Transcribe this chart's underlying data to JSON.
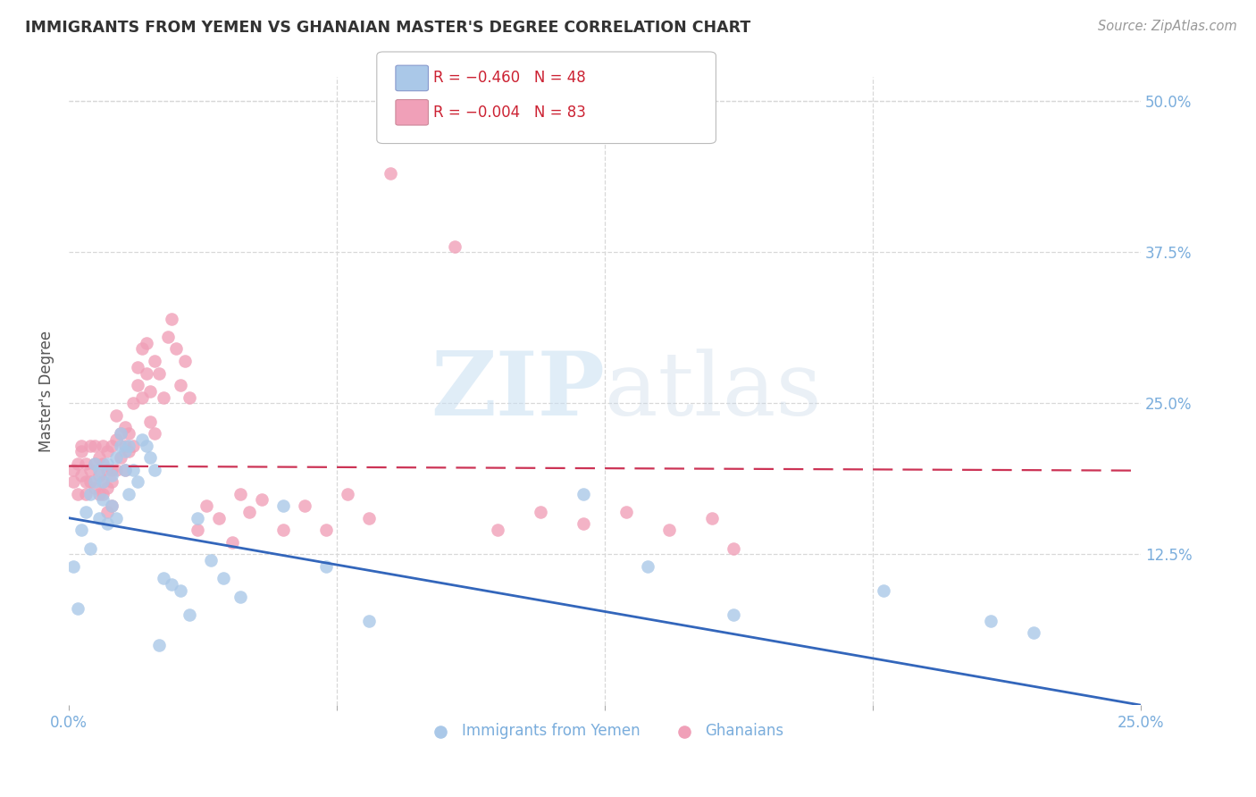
{
  "title": "IMMIGRANTS FROM YEMEN VS GHANAIAN MASTER'S DEGREE CORRELATION CHART",
  "source": "Source: ZipAtlas.com",
  "ylabel": "Master's Degree",
  "ytick_labels": [
    "50.0%",
    "37.5%",
    "25.0%",
    "12.5%"
  ],
  "ytick_values": [
    0.5,
    0.375,
    0.25,
    0.125
  ],
  "xlim": [
    0.0,
    0.25
  ],
  "ylim": [
    0.0,
    0.52
  ],
  "legend_series": [
    "Immigrants from Yemen",
    "Ghanaians"
  ],
  "background_color": "#ffffff",
  "grid_color": "#d8d8d8",
  "right_tick_color": "#7aaddc",
  "yemen_scatter_color": "#aac8e8",
  "ghana_scatter_color": "#f0a0b8",
  "yemen_line_color": "#3366bb",
  "ghana_line_color": "#cc3355",
  "yemen_slope": -0.62,
  "yemen_intercept": 0.155,
  "ghana_slope": -0.015,
  "ghana_intercept": 0.198,
  "yemen_points_x": [
    0.001,
    0.002,
    0.003,
    0.004,
    0.005,
    0.005,
    0.006,
    0.006,
    0.007,
    0.007,
    0.008,
    0.008,
    0.009,
    0.009,
    0.01,
    0.01,
    0.011,
    0.011,
    0.012,
    0.012,
    0.013,
    0.013,
    0.014,
    0.014,
    0.015,
    0.016,
    0.017,
    0.018,
    0.019,
    0.02,
    0.021,
    0.022,
    0.024,
    0.026,
    0.028,
    0.03,
    0.033,
    0.036,
    0.04,
    0.05,
    0.06,
    0.07,
    0.12,
    0.135,
    0.155,
    0.19,
    0.215,
    0.225
  ],
  "yemen_points_y": [
    0.115,
    0.08,
    0.145,
    0.16,
    0.13,
    0.175,
    0.185,
    0.2,
    0.155,
    0.195,
    0.17,
    0.185,
    0.15,
    0.2,
    0.165,
    0.19,
    0.155,
    0.205,
    0.215,
    0.225,
    0.195,
    0.21,
    0.175,
    0.215,
    0.195,
    0.185,
    0.22,
    0.215,
    0.205,
    0.195,
    0.05,
    0.105,
    0.1,
    0.095,
    0.075,
    0.155,
    0.12,
    0.105,
    0.09,
    0.165,
    0.115,
    0.07,
    0.175,
    0.115,
    0.075,
    0.095,
    0.07,
    0.06
  ],
  "ghana_points_x": [
    0.001,
    0.001,
    0.002,
    0.002,
    0.003,
    0.003,
    0.003,
    0.004,
    0.004,
    0.004,
    0.005,
    0.005,
    0.005,
    0.006,
    0.006,
    0.006,
    0.007,
    0.007,
    0.007,
    0.008,
    0.008,
    0.008,
    0.009,
    0.009,
    0.009,
    0.01,
    0.01,
    0.01,
    0.011,
    0.011,
    0.011,
    0.012,
    0.012,
    0.013,
    0.013,
    0.013,
    0.014,
    0.014,
    0.015,
    0.015,
    0.016,
    0.016,
    0.017,
    0.017,
    0.018,
    0.018,
    0.019,
    0.019,
    0.02,
    0.02,
    0.021,
    0.022,
    0.023,
    0.024,
    0.025,
    0.026,
    0.027,
    0.028,
    0.03,
    0.032,
    0.035,
    0.038,
    0.04,
    0.042,
    0.045,
    0.05,
    0.055,
    0.06,
    0.065,
    0.07,
    0.075,
    0.08,
    0.09,
    0.1,
    0.11,
    0.12,
    0.13,
    0.14,
    0.15,
    0.155,
    0.008,
    0.009,
    0.01
  ],
  "ghana_points_y": [
    0.195,
    0.185,
    0.2,
    0.175,
    0.21,
    0.19,
    0.215,
    0.2,
    0.185,
    0.175,
    0.195,
    0.215,
    0.185,
    0.2,
    0.18,
    0.215,
    0.205,
    0.19,
    0.175,
    0.215,
    0.2,
    0.185,
    0.195,
    0.21,
    0.18,
    0.215,
    0.195,
    0.185,
    0.24,
    0.22,
    0.195,
    0.225,
    0.205,
    0.23,
    0.215,
    0.195,
    0.225,
    0.21,
    0.215,
    0.25,
    0.28,
    0.265,
    0.295,
    0.255,
    0.3,
    0.275,
    0.26,
    0.235,
    0.285,
    0.225,
    0.275,
    0.255,
    0.305,
    0.32,
    0.295,
    0.265,
    0.285,
    0.255,
    0.145,
    0.165,
    0.155,
    0.135,
    0.175,
    0.16,
    0.17,
    0.145,
    0.165,
    0.145,
    0.175,
    0.155,
    0.44,
    0.48,
    0.38,
    0.145,
    0.16,
    0.15,
    0.16,
    0.145,
    0.155,
    0.13,
    0.175,
    0.16,
    0.165
  ]
}
